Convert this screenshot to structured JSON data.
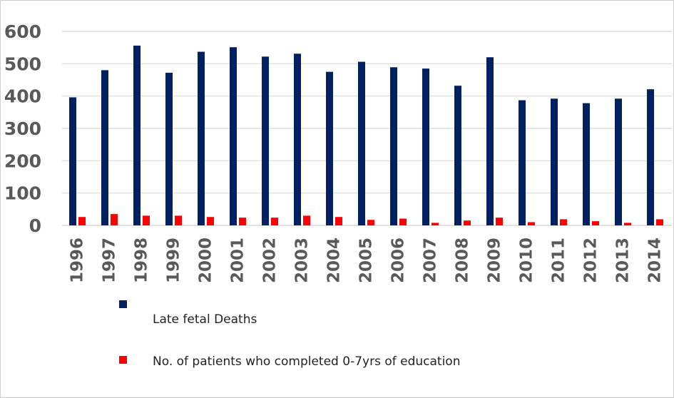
{
  "chart_data": {
    "type": "bar",
    "title": "",
    "xlabel": "",
    "ylabel": "",
    "ylim": [
      0,
      600
    ],
    "yticks": [
      0,
      100,
      200,
      300,
      400,
      500,
      600
    ],
    "grid": true,
    "legend_position": "bottom",
    "categories": [
      "1996",
      "1997",
      "1998",
      "1999",
      "2000",
      "2001",
      "2002",
      "2003",
      "2004",
      "2005",
      "2006",
      "2007",
      "2008",
      "2009",
      "2010",
      "2011",
      "2012",
      "2013",
      "2014"
    ],
    "series": [
      {
        "name": "Late fetal Deaths",
        "color": "#002060",
        "values": [
          396,
          480,
          556,
          472,
          537,
          551,
          522,
          531,
          475,
          506,
          489,
          485,
          432,
          520,
          387,
          392,
          378,
          392,
          421
        ]
      },
      {
        "name": "No. of patients who completed 0-7yrs of education",
        "color": "#ff0000",
        "values": [
          26,
          35,
          30,
          30,
          26,
          24,
          24,
          30,
          26,
          17,
          21,
          8,
          15,
          24,
          10,
          19,
          13,
          8,
          19
        ]
      }
    ]
  }
}
